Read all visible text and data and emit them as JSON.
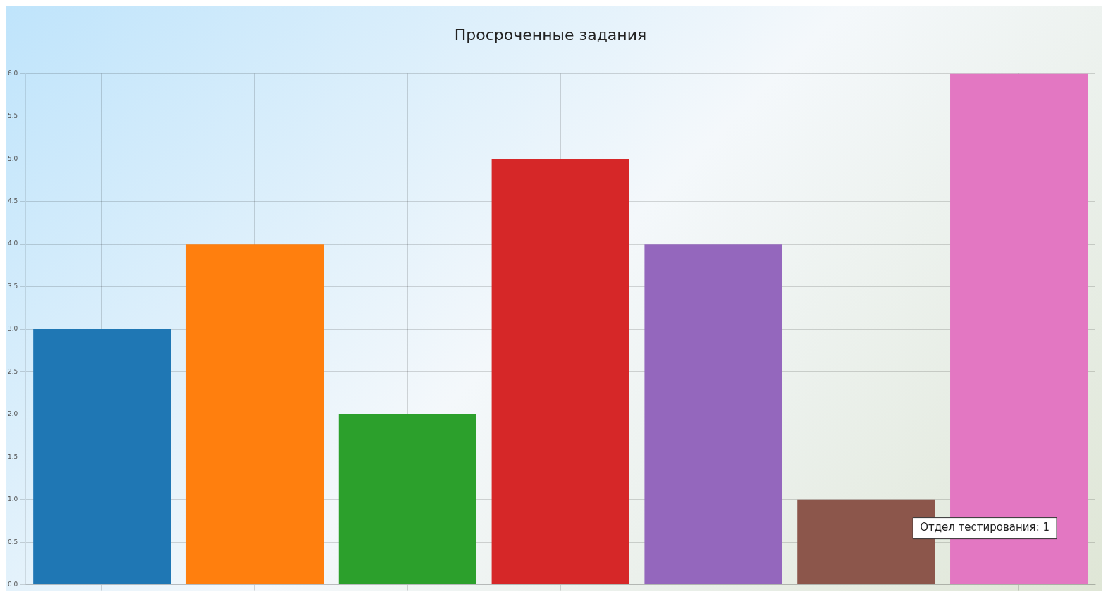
{
  "chart_data": {
    "type": "bar",
    "title": "Просроченные задания",
    "categories": [
      null,
      null,
      null,
      null,
      null,
      null,
      null
    ],
    "values": [
      3,
      4,
      2,
      5,
      4,
      1,
      6
    ],
    "colors": [
      "#1f77b4",
      "#ff7f0e",
      "#2ca02c",
      "#d62728",
      "#9467bd",
      "#8c564b",
      "#e377c2"
    ],
    "ylim": [
      0,
      6
    ],
    "yticks": [
      {
        "value": 0,
        "label": "0.0"
      },
      {
        "value": 0.5,
        "label": "0.5"
      },
      {
        "value": 1,
        "label": "1.0"
      },
      {
        "value": 1.5,
        "label": "1.5"
      },
      {
        "value": 2,
        "label": "2.0"
      },
      {
        "value": 2.5,
        "label": "2.5"
      },
      {
        "value": 3,
        "label": "3.0"
      },
      {
        "value": 3.5,
        "label": "3.5"
      },
      {
        "value": 4,
        "label": "4.0"
      },
      {
        "value": 4.5,
        "label": "4.5"
      },
      {
        "value": 5,
        "label": "5.0"
      },
      {
        "value": 5.5,
        "label": "5.5"
      },
      {
        "value": 6,
        "label": "6.0"
      }
    ],
    "grid": true,
    "tick_labels": "y",
    "legend": false,
    "annotations": [
      "Отдел тестирования: 1"
    ]
  }
}
